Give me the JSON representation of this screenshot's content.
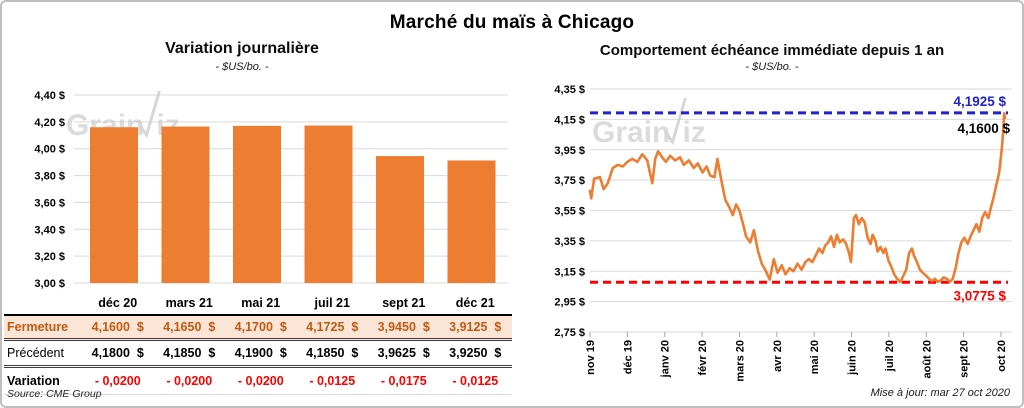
{
  "page": {
    "title": "Marché du maïs à Chicago"
  },
  "colors": {
    "bar_orange": "#ED7D31",
    "line_orange": "#ED7D31",
    "max_blue": "#2222CC",
    "min_red": "#FF0000",
    "grid_gray": "#D9D9D9",
    "close_row_bg": "#FBE5D6",
    "close_row_text": "#C45911",
    "frame_border": "#BFBFBF",
    "watermark_gray": "#CBCBCB"
  },
  "watermark": "GrainWiz",
  "chart_data": [
    {
      "type": "bar",
      "title": "Variation journalière",
      "subtitle": "- $US/bo. -",
      "categories": [
        "déc 20",
        "mars 21",
        "mai 21",
        "juil 21",
        "sept 21",
        "déc 21"
      ],
      "values": [
        4.16,
        4.165,
        4.17,
        4.1725,
        3.945,
        3.9125
      ],
      "ylim": [
        3.0,
        4.4
      ],
      "ytick_step": 0.2,
      "ytick_labels": [
        "4,40 $",
        "4,20 $",
        "4,00 $",
        "3,80 $",
        "3,60 $",
        "3,40 $",
        "3,20 $",
        "3,00 $"
      ],
      "grid": true,
      "legend": "none"
    },
    {
      "type": "line",
      "title": "Comportement échéance immédiate depuis 1 an",
      "subtitle": "- $US/bo. -",
      "x_tick_labels": [
        "nov 19",
        "déc 19",
        "janv 20",
        "févr 20",
        "mars 20",
        "avr 20",
        "mai 20",
        "juin 20",
        "juil 20",
        "août 20",
        "sept 20",
        "oct 20"
      ],
      "ylim": [
        2.75,
        4.35
      ],
      "ytick_step": 0.2,
      "ytick_labels": [
        "4,35 $",
        "4,15 $",
        "3,95 $",
        "3,75 $",
        "3,55 $",
        "3,35 $",
        "3,15 $",
        "2,95 $",
        "2,75 $"
      ],
      "grid": true,
      "legend": "none",
      "series": [
        {
          "name": "échéance immédiate",
          "points": [
            [
              0.0,
              3.68
            ],
            [
              0.003,
              3.63
            ],
            [
              0.01,
              3.76
            ],
            [
              0.024,
              3.77
            ],
            [
              0.033,
              3.69
            ],
            [
              0.043,
              3.73
            ],
            [
              0.055,
              3.83
            ],
            [
              0.067,
              3.85
            ],
            [
              0.079,
              3.84
            ],
            [
              0.09,
              3.87
            ],
            [
              0.102,
              3.89
            ],
            [
              0.114,
              3.87
            ],
            [
              0.126,
              3.92
            ],
            [
              0.138,
              3.88
            ],
            [
              0.145,
              3.79
            ],
            [
              0.15,
              3.73
            ],
            [
              0.157,
              3.89
            ],
            [
              0.164,
              3.94
            ],
            [
              0.174,
              3.9
            ],
            [
              0.183,
              3.87
            ],
            [
              0.193,
              3.91
            ],
            [
              0.205,
              3.88
            ],
            [
              0.217,
              3.9
            ],
            [
              0.226,
              3.85
            ],
            [
              0.238,
              3.88
            ],
            [
              0.25,
              3.83
            ],
            [
              0.26,
              3.86
            ],
            [
              0.271,
              3.8
            ],
            [
              0.281,
              3.84
            ],
            [
              0.29,
              3.78
            ],
            [
              0.3,
              3.77
            ],
            [
              0.307,
              3.89
            ],
            [
              0.317,
              3.74
            ],
            [
              0.326,
              3.62
            ],
            [
              0.336,
              3.57
            ],
            [
              0.344,
              3.52
            ],
            [
              0.352,
              3.59
            ],
            [
              0.36,
              3.55
            ],
            [
              0.369,
              3.46
            ],
            [
              0.376,
              3.38
            ],
            [
              0.386,
              3.34
            ],
            [
              0.395,
              3.42
            ],
            [
              0.405,
              3.28
            ],
            [
              0.414,
              3.2
            ],
            [
              0.424,
              3.15
            ],
            [
              0.433,
              3.095
            ],
            [
              0.443,
              3.23
            ],
            [
              0.452,
              3.14
            ],
            [
              0.462,
              3.19
            ],
            [
              0.471,
              3.13
            ],
            [
              0.481,
              3.17
            ],
            [
              0.49,
              3.15
            ],
            [
              0.5,
              3.2
            ],
            [
              0.51,
              3.16
            ],
            [
              0.519,
              3.21
            ],
            [
              0.527,
              3.23
            ],
            [
              0.536,
              3.21
            ],
            [
              0.545,
              3.26
            ],
            [
              0.552,
              3.3
            ],
            [
              0.56,
              3.27
            ],
            [
              0.567,
              3.32
            ],
            [
              0.574,
              3.34
            ],
            [
              0.581,
              3.38
            ],
            [
              0.588,
              3.31
            ],
            [
              0.595,
              3.39
            ],
            [
              0.602,
              3.34
            ],
            [
              0.61,
              3.36
            ],
            [
              0.617,
              3.33
            ],
            [
              0.624,
              3.27
            ],
            [
              0.629,
              3.21
            ],
            [
              0.636,
              3.5
            ],
            [
              0.641,
              3.52
            ],
            [
              0.648,
              3.46
            ],
            [
              0.655,
              3.5
            ],
            [
              0.662,
              3.47
            ],
            [
              0.669,
              3.37
            ],
            [
              0.676,
              3.33
            ],
            [
              0.681,
              3.39
            ],
            [
              0.688,
              3.35
            ],
            [
              0.693,
              3.28
            ],
            [
              0.7,
              3.31
            ],
            [
              0.707,
              3.27
            ],
            [
              0.712,
              3.3
            ],
            [
              0.719,
              3.22
            ],
            [
              0.726,
              3.18
            ],
            [
              0.733,
              3.13
            ],
            [
              0.74,
              3.1
            ],
            [
              0.748,
              3.08
            ],
            [
              0.755,
              3.12
            ],
            [
              0.762,
              3.16
            ],
            [
              0.769,
              3.27
            ],
            [
              0.776,
              3.3
            ],
            [
              0.781,
              3.25
            ],
            [
              0.788,
              3.21
            ],
            [
              0.795,
              3.16
            ],
            [
              0.802,
              3.14
            ],
            [
              0.81,
              3.12
            ],
            [
              0.817,
              3.1
            ],
            [
              0.824,
              3.085
            ],
            [
              0.831,
              3.1
            ],
            [
              0.838,
              3.08
            ],
            [
              0.845,
              3.09
            ],
            [
              0.852,
              3.11
            ],
            [
              0.86,
              3.1
            ],
            [
              0.867,
              3.08
            ],
            [
              0.874,
              3.1
            ],
            [
              0.881,
              3.17
            ],
            [
              0.888,
              3.27
            ],
            [
              0.895,
              3.34
            ],
            [
              0.902,
              3.37
            ],
            [
              0.91,
              3.33
            ],
            [
              0.917,
              3.38
            ],
            [
              0.924,
              3.42
            ],
            [
              0.931,
              3.46
            ],
            [
              0.938,
              3.41
            ],
            [
              0.945,
              3.5
            ],
            [
              0.952,
              3.54
            ],
            [
              0.96,
              3.5
            ],
            [
              0.967,
              3.58
            ],
            [
              0.971,
              3.62
            ],
            [
              0.976,
              3.68
            ],
            [
              0.981,
              3.74
            ],
            [
              0.986,
              3.8
            ],
            [
              0.99,
              3.9
            ],
            [
              0.993,
              3.98
            ],
            [
              0.996,
              4.08
            ],
            [
              0.998,
              4.19
            ],
            [
              1.0,
              4.16
            ]
          ]
        }
      ],
      "annotations": {
        "max_line": {
          "value": 4.1925,
          "label": "4,1925 $",
          "style": "dashed"
        },
        "last_value": {
          "value": 4.16,
          "label": "4,1600 $"
        },
        "min_line": {
          "value": 3.0775,
          "label": "3,0775 $",
          "style": "dashed"
        }
      }
    }
  ],
  "table": {
    "columns": [
      "déc 20",
      "mars 21",
      "mai 21",
      "juil 21",
      "sept 21",
      "déc 21"
    ],
    "rows": [
      {
        "label": "Fermeture",
        "style": "close",
        "values": [
          "4,1600  $",
          "4,1650  $",
          "4,1700  $",
          "4,1725  $",
          "3,9450  $",
          "3,9125  $"
        ]
      },
      {
        "label": "Précédent",
        "style": "prev",
        "values": [
          "4,1800  $",
          "4,1850  $",
          "4,1900  $",
          "4,1850  $",
          "3,9625  $",
          "3,9250  $"
        ]
      },
      {
        "label": "Variation",
        "style": "var",
        "values": [
          "- 0,0200",
          "- 0,0200",
          "- 0,0200",
          "- 0,0125",
          "- 0,0175",
          "- 0,0125"
        ]
      }
    ],
    "source": "Source: CME Group"
  },
  "footer": {
    "updated": "Mise à jour: mar 27 oct 2020"
  }
}
